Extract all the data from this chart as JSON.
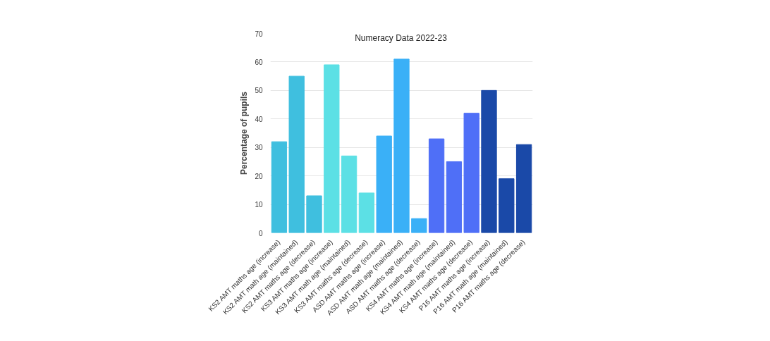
{
  "chart_data": {
    "type": "bar",
    "title": "Numeracy Data 2022-23",
    "ylabel": "Percentage of pupils",
    "categories": [
      "KS2 AMT maths age (increase)",
      "KS2 AMT math age (maintained)",
      "KS2 AMT maths age (decrease)",
      "KS3 AMT maths age (increase)",
      "KS3 AMT math age (maintained)",
      "KS3 AMT maths age (decrease)",
      "ASD AMT maths age (increase)",
      "ASD AMT math age (maintained)",
      "ASD AMT maths age (decrease)",
      "KS4 AMT maths age (increase)",
      "KS4 AMT math age (maintained)",
      "KS4 AMT maths age (decrease)",
      "P16 AMT maths age (increase)",
      "P16 AMT math age (maintained)",
      "P16 AMT maths age (decrease)"
    ],
    "values": [
      32,
      55,
      13,
      59,
      27,
      14,
      34,
      61,
      5,
      33,
      25,
      42,
      50,
      19,
      31
    ],
    "colors": [
      "#3fbfdf",
      "#3fbfdf",
      "#3fbfdf",
      "#5ce0e5",
      "#5ce0e5",
      "#5ce0e5",
      "#3ab0f7",
      "#3ab0f7",
      "#3ab0f7",
      "#4f6ff7",
      "#4f6ff7",
      "#4f6ff7",
      "#1a49a8",
      "#1a49a8",
      "#1a49a8"
    ],
    "ylim": [
      0,
      70
    ],
    "yticks": [
      0,
      10,
      20,
      30,
      40,
      50,
      60,
      70
    ],
    "grid": "y"
  }
}
